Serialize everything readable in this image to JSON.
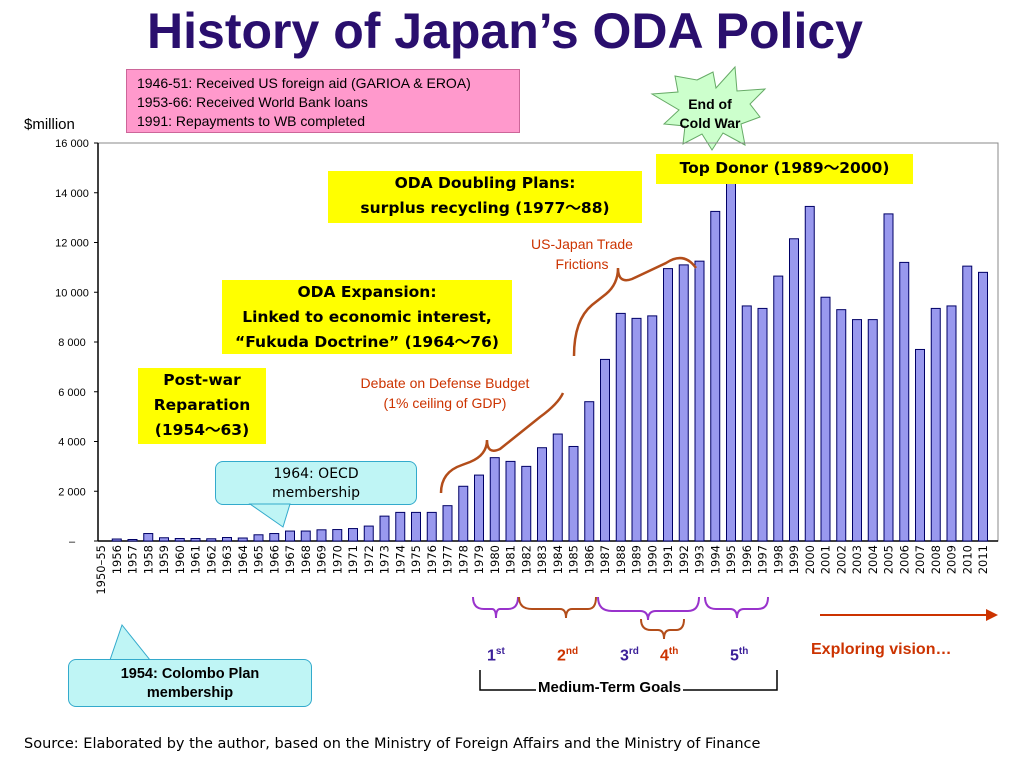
{
  "title": "History of Japan’s ODA Policy",
  "pink_note": {
    "lines": [
      "1946-51: Received US foreign aid (GARIOA & EROA)",
      "1953-66: Received World Bank loans",
      "1991: Repayments to WB completed"
    ]
  },
  "cold_war": {
    "line1": "End of",
    "line2": "Cold War"
  },
  "annotations": {
    "top_donor": "Top Donor (1989～2000)",
    "doubling_1": "ODA Doubling Plans:",
    "doubling_2": "surplus recycling (1977～88)",
    "expansion_1": "ODA Expansion:",
    "expansion_2": "Linked to economic interest,",
    "expansion_3": "“Fukuda Doctrine” (1964～76)",
    "postwar_1": "Post-war",
    "postwar_2": "Reparation",
    "postwar_3": "(1954～63)",
    "trade_1": "US-Japan Trade",
    "trade_2": "Frictions",
    "defense_1": "Debate on Defense Budget",
    "defense_2": "(1% ceiling of GDP)",
    "oecd_1": "1964: OECD",
    "oecd_2": "membership",
    "colombo_1": "1954: Colombo Plan",
    "colombo_2": "membership"
  },
  "goals": {
    "g1": "1",
    "g1s": "st",
    "g2": "2",
    "g2s": "nd",
    "g3": "3",
    "g3s": "rd",
    "g4": "4",
    "g4s": "th",
    "g5": "5",
    "g5s": "th",
    "medium_term": "Medium-Term Goals",
    "exploring": "Exploring vision…"
  },
  "source": "Source: Elaborated by the author, based on the Ministry of Foreign Affairs and the Ministry of Finance",
  "colors": {
    "title": "#2a0f6e",
    "bar_fill": "#9999ee",
    "bar_stroke": "#000066",
    "bracket_purple": "#9933cc",
    "bracket_brown": "#b34d1a",
    "accent_red": "#cc3300",
    "highlight": "#ffff00"
  },
  "chart_data": {
    "type": "bar",
    "ylabel": "$million",
    "ylim": [
      0,
      16000
    ],
    "y_ticks": [
      "–",
      "2 000",
      "4 000",
      "6 000",
      "8 000",
      "10 000",
      "12 000",
      "14 000",
      "16 000"
    ],
    "categories": [
      "1950–55",
      "1956",
      "1957",
      "1958",
      "1959",
      "1960",
      "1961",
      "1962",
      "1963",
      "1964",
      "1965",
      "1966",
      "1967",
      "1968",
      "1969",
      "1970",
      "1971",
      "1972",
      "1973",
      "1974",
      "1975",
      "1976",
      "1977",
      "1978",
      "1979",
      "1980",
      "1981",
      "1982",
      "1983",
      "1984",
      "1985",
      "1986",
      "1987",
      "1988",
      "1989",
      "1990",
      "1991",
      "1992",
      "1993",
      "1994",
      "1995",
      "1996",
      "1997",
      "1998",
      "1999",
      "2000",
      "2001",
      "2002",
      "2003",
      "2004",
      "2005",
      "2006",
      "2007",
      "2008",
      "2009",
      "2010",
      "2011"
    ],
    "values": [
      0,
      80,
      60,
      300,
      130,
      100,
      100,
      90,
      140,
      120,
      250,
      300,
      400,
      400,
      450,
      460,
      500,
      600,
      1000,
      1150,
      1150,
      1150,
      1420,
      2200,
      2650,
      3350,
      3200,
      3000,
      3750,
      4300,
      3800,
      5600,
      7300,
      9150,
      8950,
      9050,
      10950,
      11100,
      11250,
      13250,
      14500,
      9450,
      9350,
      10650,
      12150,
      13450,
      9800,
      9300,
      8900,
      8900,
      13150,
      11200,
      7700,
      9350,
      9450,
      11050,
      10800
    ],
    "grid": false,
    "legend": "none"
  }
}
